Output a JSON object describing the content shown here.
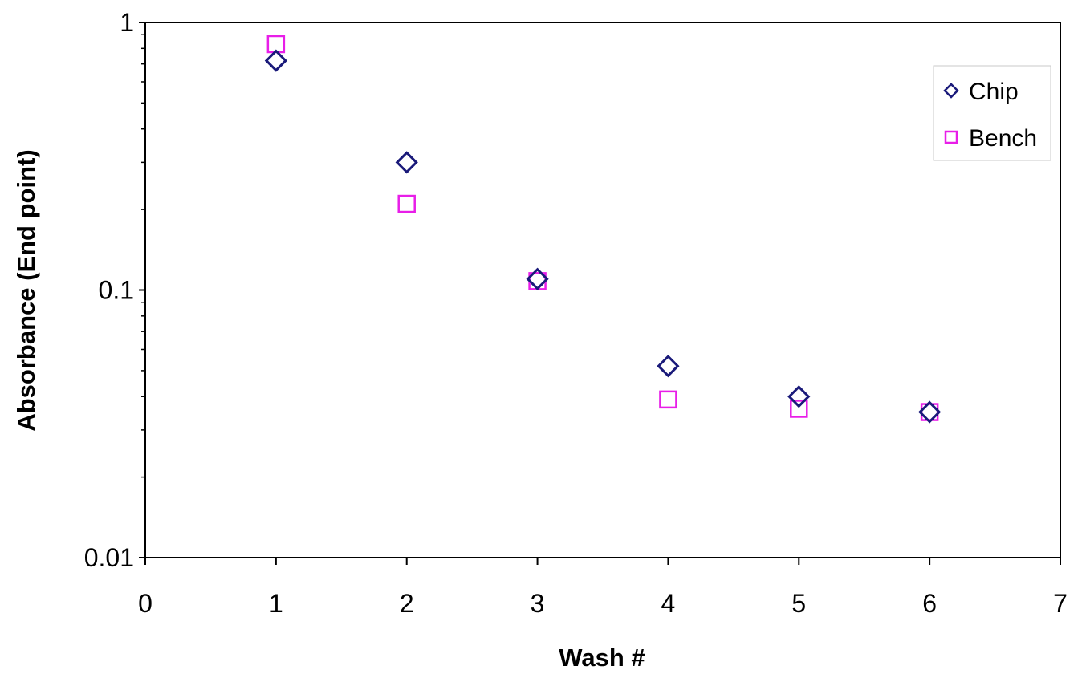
{
  "chart_data": {
    "type": "scatter",
    "title": "",
    "xlabel": "Wash #",
    "ylabel": "Absorbance (End point)",
    "x_scale": "linear",
    "y_scale": "log",
    "xlim": [
      0,
      7
    ],
    "ylim": [
      0.01,
      1
    ],
    "x_ticks": [
      "0",
      "1",
      "2",
      "3",
      "4",
      "5",
      "6",
      "7"
    ],
    "y_ticks": [
      "0.01",
      "0.1",
      "1"
    ],
    "grid": false,
    "legend_position": "top-right",
    "series": [
      {
        "name": "Chip",
        "marker": "diamond",
        "color": "#1a1a7a",
        "x": [
          1,
          2,
          3,
          4,
          5,
          6
        ],
        "y": [
          0.72,
          0.3,
          0.11,
          0.052,
          0.04,
          0.035
        ]
      },
      {
        "name": "Bench",
        "marker": "square",
        "color": "#e81ee8",
        "x": [
          1,
          2,
          3,
          4,
          5,
          6
        ],
        "y": [
          0.83,
          0.21,
          0.108,
          0.039,
          0.036,
          0.035
        ]
      }
    ]
  }
}
